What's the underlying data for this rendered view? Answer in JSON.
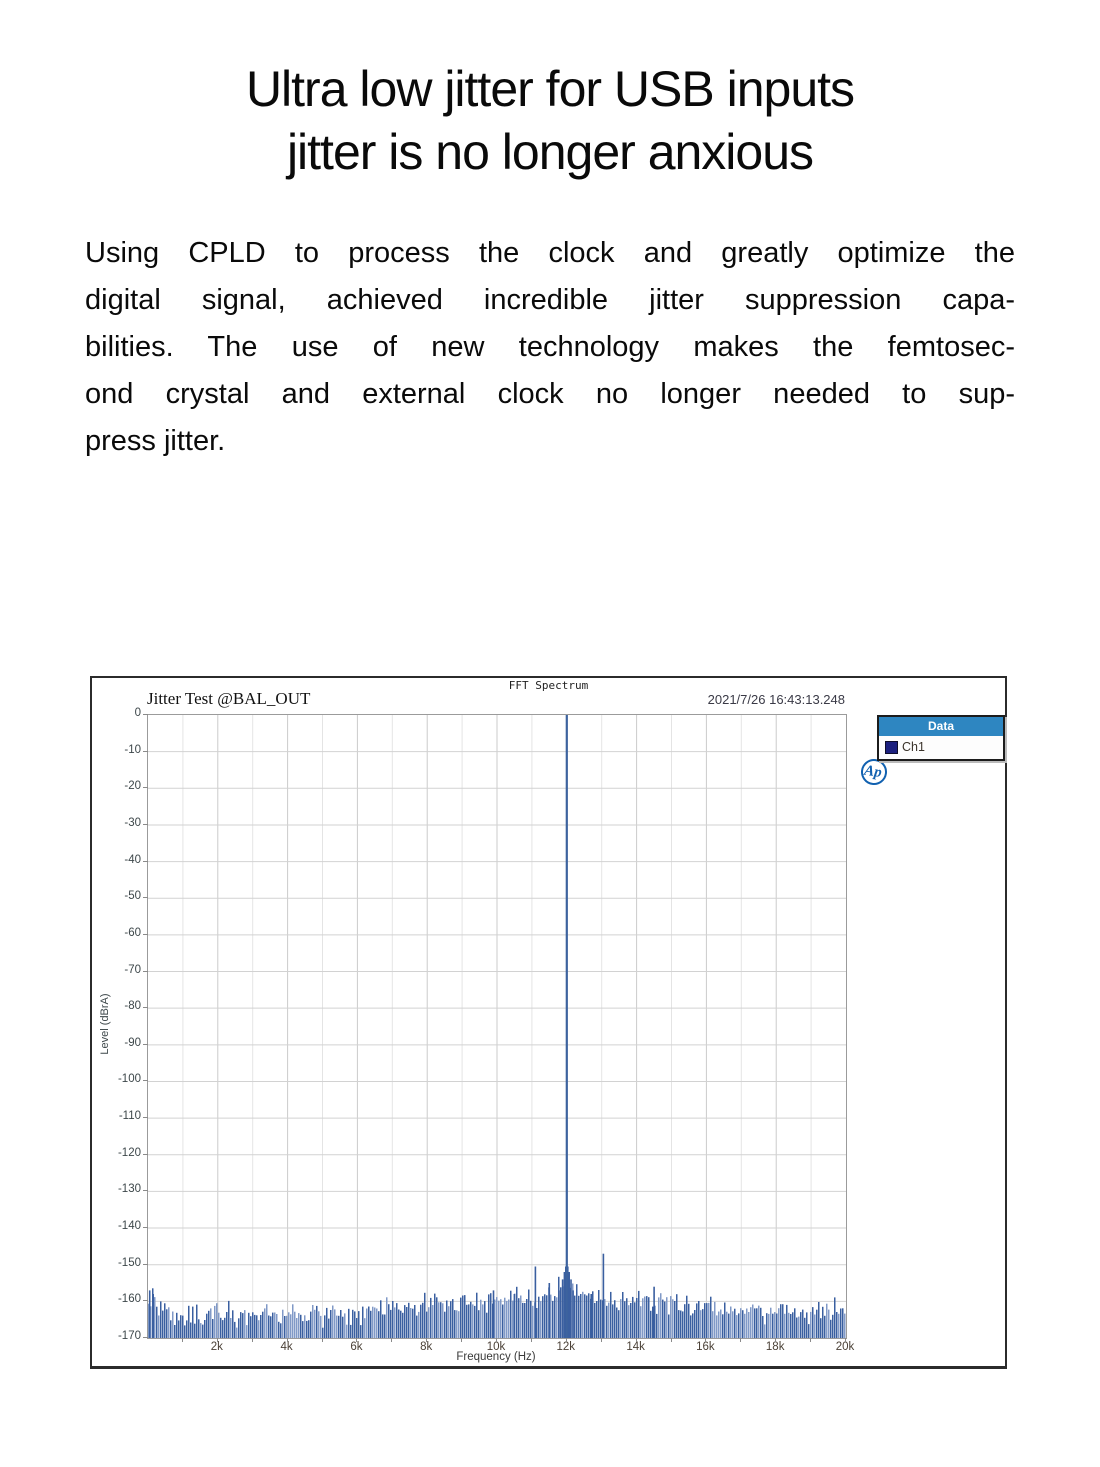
{
  "title": {
    "line1": "Ultra low jitter for USB inputs",
    "line2": "jitter is no longer anxious"
  },
  "paragraph": {
    "lines": [
      "Using CPLD to process the clock and greatly optimize the",
      "digital signal, achieved incredible jitter suppression capa-",
      "bilities. The use of new technology makes the femtosec-",
      "ond crystal and external clock no longer needed to sup-",
      "press jitter."
    ]
  },
  "figure": {
    "window_title": "FFT Spectrum",
    "chart_title": "Jitter Test @BAL_OUT",
    "timestamp": "2021/7/26 16:43:13.248",
    "logo_text": "Ap",
    "legend": {
      "header": "Data",
      "items": [
        {
          "label": "Ch1",
          "swatch": "#1b1f7e"
        }
      ]
    }
  },
  "chart_data": {
    "type": "bar",
    "title": "FFT Spectrum",
    "subtitle": "Jitter Test @BAL_OUT",
    "xlabel": "Frequency (Hz)",
    "ylabel": "Level (dBrA)",
    "xlim": [
      0,
      20000
    ],
    "ylim": [
      -170,
      0
    ],
    "grid": true,
    "legend_pos": "outside-right",
    "series_name": "Ch1",
    "x_ticks": [
      {
        "label": "2k",
        "value": 2000
      },
      {
        "label": "4k",
        "value": 4000
      },
      {
        "label": "6k",
        "value": 6000
      },
      {
        "label": "8k",
        "value": 8000
      },
      {
        "label": "10k",
        "value": 10000
      },
      {
        "label": "12k",
        "value": 12000
      },
      {
        "label": "14k",
        "value": 14000
      },
      {
        "label": "16k",
        "value": 16000
      },
      {
        "label": "18k",
        "value": 18000
      },
      {
        "label": "20k",
        "value": 20000
      }
    ],
    "y_ticks": [
      {
        "label": "0",
        "value": 0
      },
      {
        "label": "-10",
        "value": -10
      },
      {
        "label": "-20",
        "value": -20
      },
      {
        "label": "-30",
        "value": -30
      },
      {
        "label": "-40",
        "value": -40
      },
      {
        "label": "-50",
        "value": -50
      },
      {
        "label": "-60",
        "value": -60
      },
      {
        "label": "-70",
        "value": -70
      },
      {
        "label": "-80",
        "value": -80
      },
      {
        "label": "-90",
        "value": -90
      },
      {
        "label": "-100",
        "value": -100
      },
      {
        "label": "-110",
        "value": -110
      },
      {
        "label": "-120",
        "value": -120
      },
      {
        "label": "-130",
        "value": -130
      },
      {
        "label": "-140",
        "value": -140
      },
      {
        "label": "-150",
        "value": -150
      },
      {
        "label": "-160",
        "value": -160
      },
      {
        "label": "-170",
        "value": -170
      }
    ],
    "main_peak": {
      "freq_hz": 12000,
      "level_db": 0
    },
    "spurs": [
      [
        50,
        -157
      ],
      [
        150,
        -158
      ],
      [
        9900,
        -157
      ],
      [
        10500,
        -158
      ],
      [
        11100,
        -150.5
      ],
      [
        11500,
        -155
      ],
      [
        11820,
        -157
      ],
      [
        11880,
        -154
      ],
      [
        11930,
        -152
      ],
      [
        11970,
        -150.5
      ],
      [
        12030,
        -150.5
      ],
      [
        12070,
        -152
      ],
      [
        12120,
        -154
      ],
      [
        12180,
        -157
      ],
      [
        12700,
        -158
      ],
      [
        13050,
        -147
      ],
      [
        14500,
        -156
      ]
    ],
    "noise_envelope": [
      [
        0,
        -158
      ],
      [
        300,
        -163
      ],
      [
        1000,
        -164
      ],
      [
        3000,
        -164
      ],
      [
        5000,
        -163.5
      ],
      [
        6000,
        -163
      ],
      [
        7000,
        -162
      ],
      [
        8000,
        -161
      ],
      [
        9000,
        -160.5
      ],
      [
        10000,
        -160
      ],
      [
        10800,
        -159
      ],
      [
        11500,
        -158.5
      ],
      [
        11900,
        -156
      ],
      [
        12000,
        -151
      ],
      [
        12100,
        -156
      ],
      [
        12500,
        -158
      ],
      [
        13000,
        -159
      ],
      [
        14000,
        -160
      ],
      [
        15000,
        -161
      ],
      [
        16000,
        -162
      ],
      [
        17000,
        -162.5
      ],
      [
        18000,
        -163
      ],
      [
        19000,
        -163
      ],
      [
        20000,
        -162
      ]
    ],
    "noise_variation_db": 4,
    "noise_seed": 42,
    "bar_color": "#3a5fa0",
    "bar_color_light": "#8099c7",
    "peak_color": "#3d639e",
    "grid_minor_color": "#e4e4e4",
    "grid_major_color": "#cbcbcb",
    "grid_h_color": "#d2d2d2"
  }
}
